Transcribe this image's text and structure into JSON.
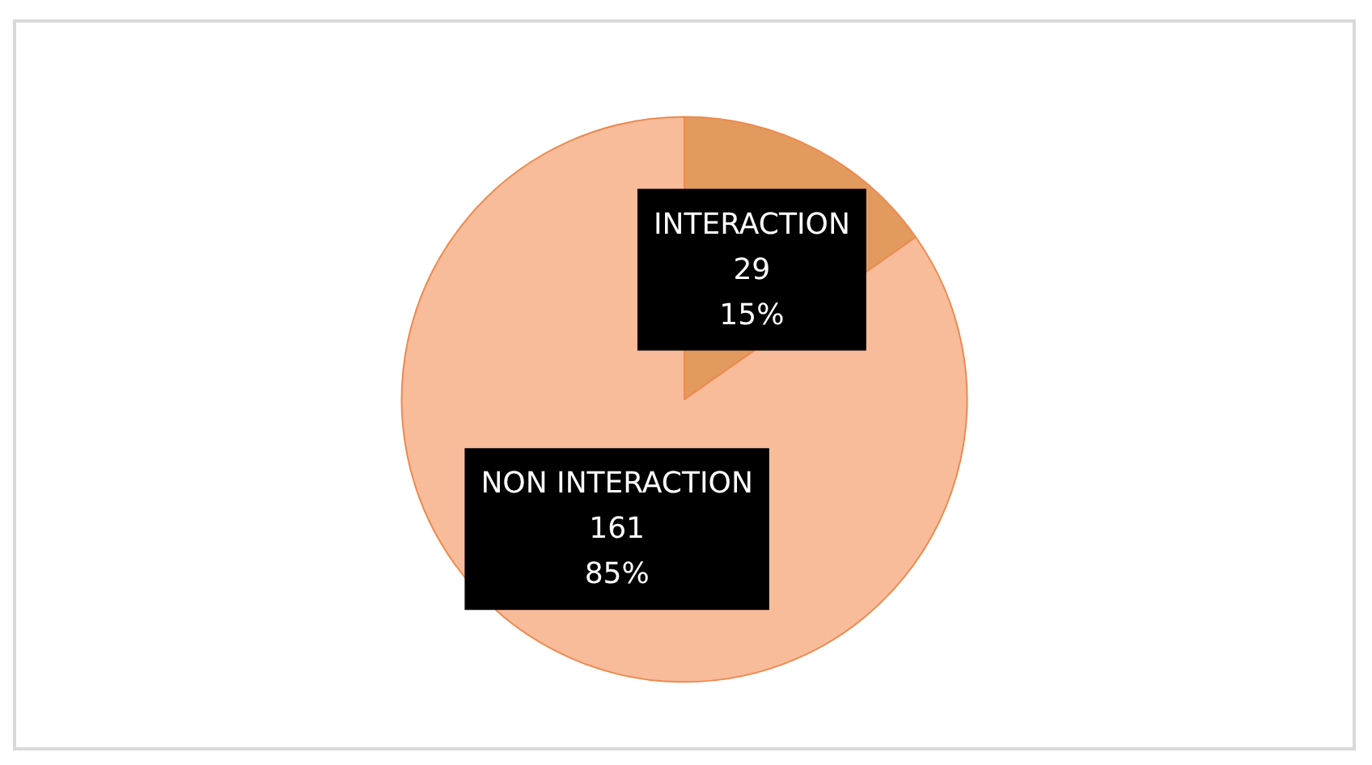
{
  "chart_data": {
    "type": "pie",
    "categories": [
      "INTERACTION",
      "NON INTERACTION"
    ],
    "values": [
      29,
      161
    ],
    "value_labels": [
      "29",
      "161"
    ],
    "annotations": [
      "15%",
      "85%"
    ],
    "colors": [
      "#e39a5e",
      "#f8bc9a"
    ],
    "legend": false
  }
}
